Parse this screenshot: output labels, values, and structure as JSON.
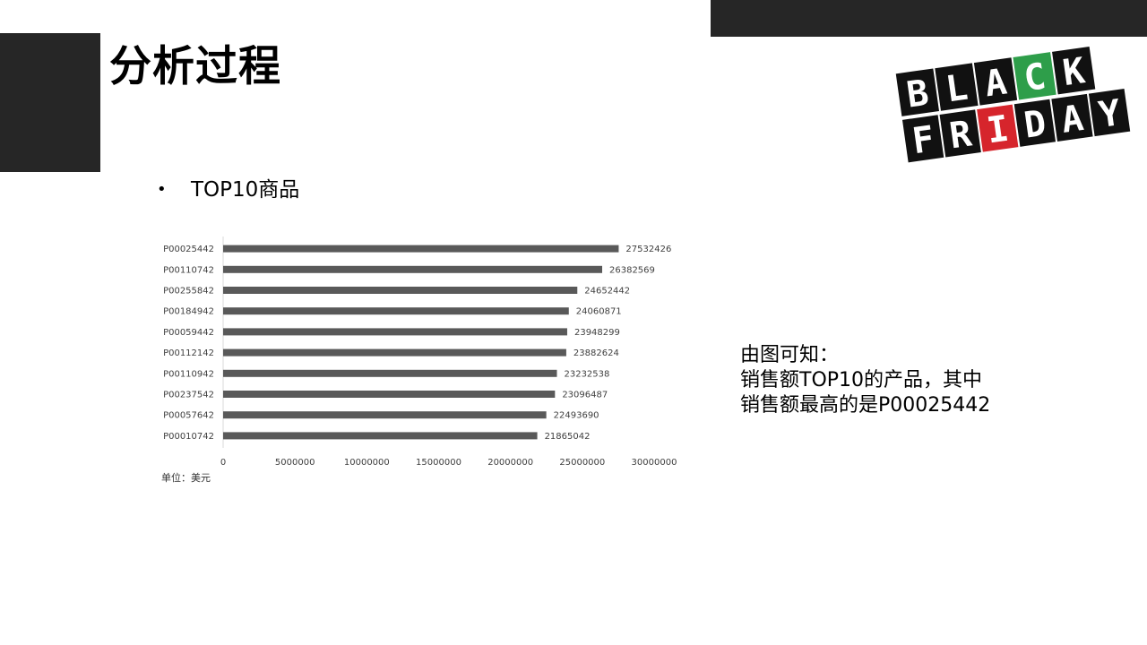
{
  "slide": {
    "title": "分析过程",
    "bullet_symbol": "•",
    "bullet_text": "TOP10商品",
    "unit_note": "单位：美元",
    "conclusion": {
      "line1": "由图可知：",
      "line2": "销售额TOP10的产品，其中",
      "line3": "销售额最高的是P00025442"
    },
    "logo": {
      "line1": "BLACK",
      "line2": "FRIDAY",
      "colors": {
        "tile": "#111111",
        "letter": "#ffffff",
        "green_tile": "#2e9e4a",
        "red_tile": "#d6252c"
      }
    },
    "colors": {
      "dark_block": "#262626",
      "bar": "#595959"
    }
  },
  "chart_data": {
    "type": "bar",
    "orientation": "horizontal",
    "categories": [
      "P00025442",
      "P00110742",
      "P00255842",
      "P00184942",
      "P00059442",
      "P00112142",
      "P00110942",
      "P00237542",
      "P00057642",
      "P00010742"
    ],
    "values": [
      27532426,
      26382569,
      24652442,
      24060871,
      23948299,
      23882624,
      23232538,
      23096487,
      22493690,
      21865042
    ],
    "xlim": [
      0,
      30000000
    ],
    "xticks": [
      0,
      5000000,
      10000000,
      15000000,
      20000000,
      25000000,
      30000000
    ],
    "data_labels": true,
    "grid": false,
    "legend": "none"
  }
}
